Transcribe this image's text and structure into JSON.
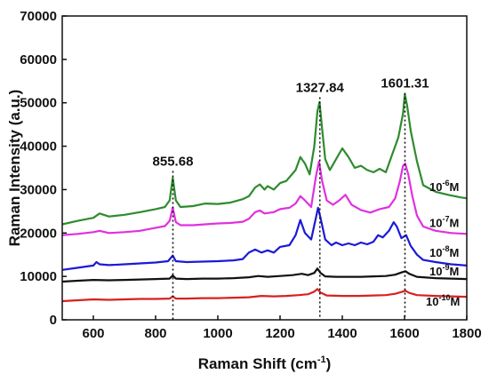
{
  "chart_data": {
    "type": "line",
    "title": "",
    "xlabel": "Raman Shift (cm",
    "xlabel_sup": "-1",
    "xlabel_end": ")",
    "ylabel": "Raman Intensity (a.u.)",
    "xlim": [
      500,
      1800
    ],
    "ylim": [
      0,
      70000
    ],
    "x_ticks": [
      600,
      800,
      1000,
      1200,
      1400,
      1600,
      1800
    ],
    "y_ticks": [
      0,
      10000,
      20000,
      30000,
      40000,
      50000,
      60000,
      70000
    ],
    "peak_labels": [
      {
        "x": 855.68,
        "label": "855.68",
        "y": 35500
      },
      {
        "x": 1327.84,
        "label": "1327.84",
        "y": 52500
      },
      {
        "x": 1601.31,
        "label": "1601.31",
        "y": 53500
      }
    ],
    "series": [
      {
        "name": "10-6M",
        "label_base": "10",
        "label_sup": "-6",
        "label_unit": "M",
        "color": "#2e8b2e",
        "points": [
          [
            500,
            22000
          ],
          [
            550,
            22800
          ],
          [
            600,
            23500
          ],
          [
            620,
            24500
          ],
          [
            650,
            23800
          ],
          [
            700,
            24200
          ],
          [
            750,
            24800
          ],
          [
            800,
            25500
          ],
          [
            830,
            26000
          ],
          [
            845,
            27500
          ],
          [
            855,
            32700
          ],
          [
            865,
            27500
          ],
          [
            880,
            26000
          ],
          [
            920,
            26200
          ],
          [
            960,
            26800
          ],
          [
            1000,
            26700
          ],
          [
            1040,
            27000
          ],
          [
            1080,
            27800
          ],
          [
            1100,
            28500
          ],
          [
            1120,
            30500
          ],
          [
            1135,
            31200
          ],
          [
            1150,
            30000
          ],
          [
            1160,
            30800
          ],
          [
            1180,
            30000
          ],
          [
            1200,
            31500
          ],
          [
            1220,
            32000
          ],
          [
            1250,
            34500
          ],
          [
            1265,
            37500
          ],
          [
            1280,
            36000
          ],
          [
            1295,
            33500
          ],
          [
            1310,
            40000
          ],
          [
            1320,
            48000
          ],
          [
            1327,
            50200
          ],
          [
            1335,
            44000
          ],
          [
            1345,
            37000
          ],
          [
            1360,
            34500
          ],
          [
            1380,
            37000
          ],
          [
            1400,
            39500
          ],
          [
            1420,
            37500
          ],
          [
            1440,
            35000
          ],
          [
            1460,
            35500
          ],
          [
            1480,
            34500
          ],
          [
            1500,
            34000
          ],
          [
            1520,
            34800
          ],
          [
            1540,
            34000
          ],
          [
            1560,
            38000
          ],
          [
            1580,
            42000
          ],
          [
            1595,
            47500
          ],
          [
            1601,
            52000
          ],
          [
            1608,
            49500
          ],
          [
            1620,
            43500
          ],
          [
            1640,
            36500
          ],
          [
            1660,
            31000
          ],
          [
            1700,
            29500
          ],
          [
            1740,
            28800
          ],
          [
            1780,
            28200
          ],
          [
            1800,
            28000
          ]
        ]
      },
      {
        "name": "10-7M",
        "label_base": "10",
        "label_sup": "-7",
        "label_unit": "M",
        "color": "#e030e0",
        "points": [
          [
            500,
            19500
          ],
          [
            550,
            19800
          ],
          [
            600,
            20200
          ],
          [
            620,
            20500
          ],
          [
            650,
            20000
          ],
          [
            700,
            20200
          ],
          [
            750,
            20500
          ],
          [
            800,
            21200
          ],
          [
            830,
            21600
          ],
          [
            845,
            22800
          ],
          [
            855,
            25800
          ],
          [
            865,
            22500
          ],
          [
            880,
            21800
          ],
          [
            920,
            21800
          ],
          [
            960,
            22000
          ],
          [
            1000,
            22200
          ],
          [
            1040,
            22300
          ],
          [
            1080,
            22600
          ],
          [
            1100,
            23300
          ],
          [
            1120,
            24800
          ],
          [
            1135,
            25200
          ],
          [
            1150,
            24500
          ],
          [
            1180,
            24800
          ],
          [
            1200,
            25500
          ],
          [
            1230,
            25800
          ],
          [
            1250,
            26800
          ],
          [
            1265,
            28500
          ],
          [
            1280,
            27500
          ],
          [
            1300,
            26000
          ],
          [
            1315,
            33000
          ],
          [
            1325,
            36500
          ],
          [
            1335,
            32000
          ],
          [
            1350,
            27500
          ],
          [
            1370,
            26500
          ],
          [
            1390,
            27500
          ],
          [
            1410,
            28800
          ],
          [
            1430,
            26500
          ],
          [
            1460,
            25300
          ],
          [
            1490,
            24700
          ],
          [
            1520,
            25500
          ],
          [
            1550,
            26000
          ],
          [
            1570,
            28000
          ],
          [
            1585,
            32000
          ],
          [
            1595,
            35500
          ],
          [
            1602,
            36000
          ],
          [
            1612,
            33500
          ],
          [
            1625,
            28500
          ],
          [
            1640,
            24000
          ],
          [
            1660,
            21500
          ],
          [
            1700,
            20500
          ],
          [
            1750,
            20000
          ],
          [
            1800,
            19800
          ]
        ]
      },
      {
        "name": "10-8M",
        "label_base": "10",
        "label_sup": "-8",
        "label_unit": "M",
        "color": "#1a1ad8",
        "points": [
          [
            500,
            11500
          ],
          [
            550,
            12000
          ],
          [
            600,
            12500
          ],
          [
            610,
            13300
          ],
          [
            620,
            12800
          ],
          [
            650,
            12600
          ],
          [
            700,
            12800
          ],
          [
            750,
            13000
          ],
          [
            800,
            13200
          ],
          [
            840,
            13500
          ],
          [
            855,
            14800
          ],
          [
            865,
            13500
          ],
          [
            900,
            13300
          ],
          [
            950,
            13400
          ],
          [
            1000,
            13500
          ],
          [
            1050,
            13700
          ],
          [
            1080,
            14000
          ],
          [
            1100,
            15500
          ],
          [
            1120,
            16200
          ],
          [
            1140,
            15500
          ],
          [
            1160,
            16000
          ],
          [
            1180,
            15500
          ],
          [
            1200,
            16800
          ],
          [
            1230,
            17200
          ],
          [
            1250,
            19500
          ],
          [
            1265,
            23000
          ],
          [
            1280,
            20000
          ],
          [
            1300,
            18500
          ],
          [
            1315,
            23500
          ],
          [
            1322,
            25800
          ],
          [
            1330,
            23500
          ],
          [
            1345,
            18500
          ],
          [
            1365,
            17200
          ],
          [
            1380,
            17800
          ],
          [
            1400,
            17200
          ],
          [
            1420,
            17600
          ],
          [
            1440,
            17200
          ],
          [
            1460,
            17800
          ],
          [
            1480,
            17400
          ],
          [
            1500,
            18000
          ],
          [
            1515,
            19500
          ],
          [
            1530,
            19000
          ],
          [
            1550,
            20500
          ],
          [
            1565,
            22500
          ],
          [
            1575,
            21500
          ],
          [
            1590,
            18800
          ],
          [
            1605,
            19500
          ],
          [
            1620,
            17000
          ],
          [
            1640,
            15000
          ],
          [
            1660,
            13800
          ],
          [
            1700,
            13300
          ],
          [
            1750,
            12800
          ],
          [
            1800,
            12500
          ]
        ]
      },
      {
        "name": "10-9M",
        "label_base": "10",
        "label_sup": "-9",
        "label_unit": "M",
        "color": "#111111",
        "points": [
          [
            500,
            8800
          ],
          [
            550,
            9000
          ],
          [
            600,
            9200
          ],
          [
            650,
            9100
          ],
          [
            700,
            9200
          ],
          [
            750,
            9300
          ],
          [
            800,
            9400
          ],
          [
            845,
            9500
          ],
          [
            855,
            10200
          ],
          [
            865,
            9500
          ],
          [
            900,
            9400
          ],
          [
            950,
            9500
          ],
          [
            1000,
            9500
          ],
          [
            1050,
            9600
          ],
          [
            1100,
            9800
          ],
          [
            1130,
            10100
          ],
          [
            1160,
            9900
          ],
          [
            1200,
            10100
          ],
          [
            1240,
            10300
          ],
          [
            1270,
            10600
          ],
          [
            1290,
            10300
          ],
          [
            1310,
            10800
          ],
          [
            1320,
            11800
          ],
          [
            1330,
            10800
          ],
          [
            1345,
            10000
          ],
          [
            1380,
            9900
          ],
          [
            1420,
            9900
          ],
          [
            1460,
            9900
          ],
          [
            1500,
            10000
          ],
          [
            1540,
            10100
          ],
          [
            1570,
            10400
          ],
          [
            1590,
            10900
          ],
          [
            1603,
            11200
          ],
          [
            1615,
            10600
          ],
          [
            1640,
            9900
          ],
          [
            1700,
            9600
          ],
          [
            1750,
            9500
          ],
          [
            1800,
            9400
          ]
        ]
      },
      {
        "name": "10-10M",
        "label_base": "10",
        "label_sup": "-10",
        "label_unit": "M",
        "color": "#d82020",
        "points": [
          [
            500,
            4300
          ],
          [
            550,
            4500
          ],
          [
            600,
            4700
          ],
          [
            650,
            4600
          ],
          [
            700,
            4700
          ],
          [
            750,
            4800
          ],
          [
            800,
            4800
          ],
          [
            845,
            4900
          ],
          [
            855,
            5400
          ],
          [
            865,
            4900
          ],
          [
            900,
            4900
          ],
          [
            950,
            5000
          ],
          [
            1000,
            5000
          ],
          [
            1050,
            5100
          ],
          [
            1100,
            5200
          ],
          [
            1140,
            5500
          ],
          [
            1180,
            5400
          ],
          [
            1220,
            5500
          ],
          [
            1260,
            5700
          ],
          [
            1290,
            5900
          ],
          [
            1310,
            6500
          ],
          [
            1320,
            7100
          ],
          [
            1330,
            6300
          ],
          [
            1350,
            5600
          ],
          [
            1400,
            5500
          ],
          [
            1450,
            5500
          ],
          [
            1500,
            5600
          ],
          [
            1540,
            5700
          ],
          [
            1570,
            6000
          ],
          [
            1590,
            6400
          ],
          [
            1603,
            6700
          ],
          [
            1615,
            6200
          ],
          [
            1640,
            5700
          ],
          [
            1700,
            5500
          ],
          [
            1750,
            5400
          ],
          [
            1800,
            5300
          ]
        ]
      }
    ]
  }
}
